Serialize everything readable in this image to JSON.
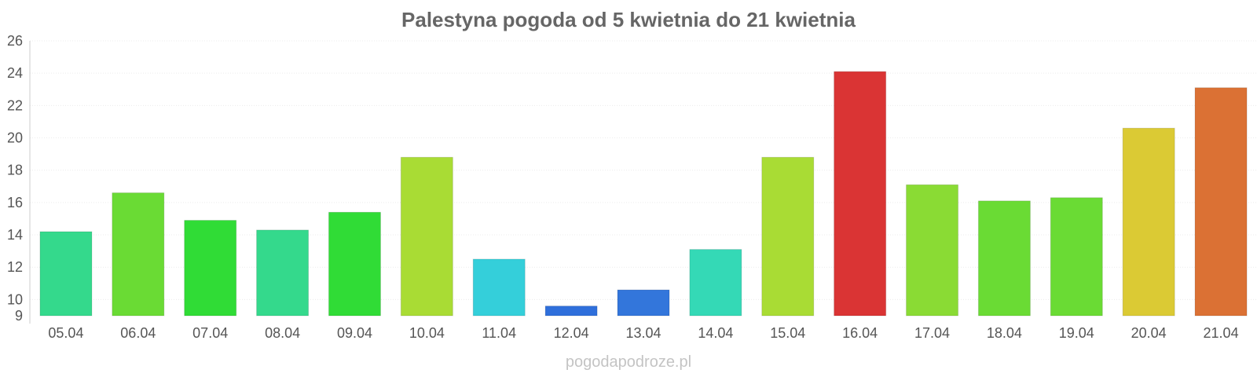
{
  "chart_data": {
    "type": "bar",
    "title": "Palestyna pogoda od 5 kwietnia do 21 kwietnia",
    "xlabel": "",
    "ylabel": "",
    "categories": [
      "05.04",
      "06.04",
      "07.04",
      "08.04",
      "09.04",
      "10.04",
      "11.04",
      "12.04",
      "13.04",
      "14.04",
      "15.04",
      "16.04",
      "17.04",
      "18.04",
      "19.04",
      "20.04",
      "21.04"
    ],
    "values": [
      14.2,
      16.6,
      14.9,
      14.3,
      15.4,
      18.8,
      12.5,
      9.6,
      10.6,
      13.1,
      18.8,
      24.1,
      17.1,
      16.1,
      16.3,
      20.6,
      23.1
    ],
    "colors": [
      "#34d98c",
      "#6adb34",
      "#30dc36",
      "#34d98c",
      "#30dc36",
      "#a9dc34",
      "#34cfda",
      "#2f6fdb",
      "#3376db",
      "#34d9b6",
      "#a9dc34",
      "#da3434",
      "#8adb34",
      "#6adb34",
      "#6adb34",
      "#dbca34",
      "#db7134"
    ],
    "ylim": [
      9,
      26
    ],
    "yticks": [
      9,
      10,
      12,
      14,
      16,
      18,
      20,
      22,
      24,
      26
    ],
    "grid": true,
    "legend": "none"
  },
  "watermark": "pogodapodroze.pl"
}
